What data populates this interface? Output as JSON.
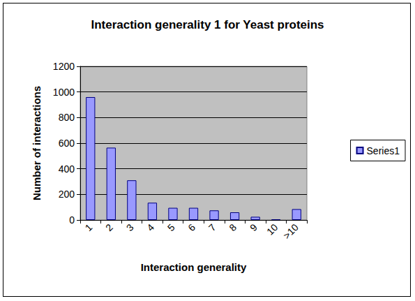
{
  "chart_data": {
    "type": "bar",
    "title": "Interaction generality 1 for Yeast proteins",
    "x_label": "Interaction generality",
    "y_label": "Number of interactions",
    "categories": [
      "1",
      "2",
      "3",
      "4",
      "5",
      "6",
      "7",
      "8",
      "9",
      "10",
      ">10"
    ],
    "series": [
      {
        "name": "Series1",
        "color": "#9999ff",
        "values": [
          960,
          565,
          310,
          135,
          95,
          95,
          75,
          60,
          25,
          5,
          85
        ]
      }
    ],
    "ylim": [
      0,
      1200
    ],
    "yticks": [
      0,
      200,
      400,
      600,
      800,
      1000,
      1200
    ],
    "grid": true,
    "legend": "right"
  }
}
